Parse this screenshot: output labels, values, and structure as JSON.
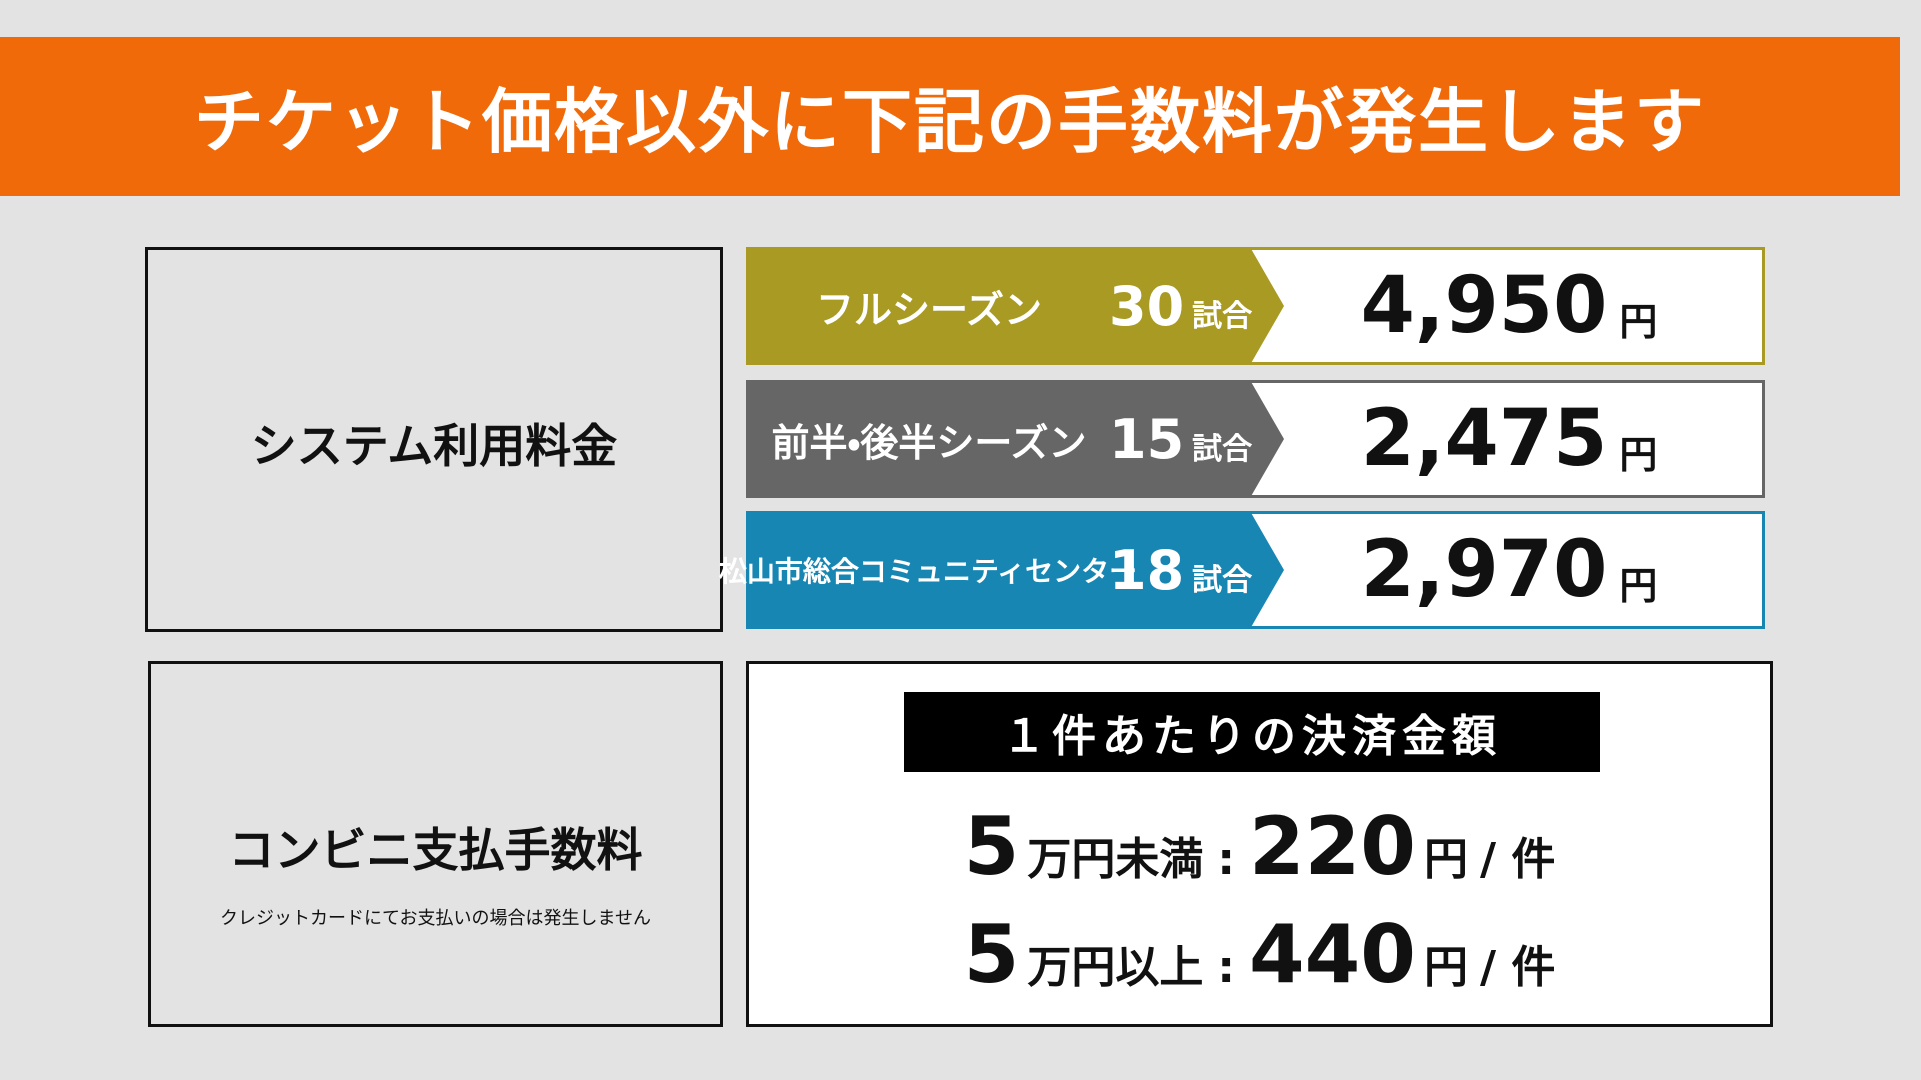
{
  "header": {
    "title": "チケット価格以外に下記の手数料が発生します"
  },
  "system_fee": {
    "label": "システム利用料金",
    "plans": [
      {
        "name": "フルシーズン",
        "games": "30",
        "games_unit": "試合",
        "price": "4,950",
        "price_unit": "円",
        "color": "#a89a22"
      },
      {
        "name": "前半・後半シーズン",
        "games": "15",
        "games_unit": "試合",
        "price": "2,475",
        "price_unit": "円",
        "color": "#666666"
      },
      {
        "name": "松山市総合コミュニティセンター",
        "games": "18",
        "games_unit": "試合",
        "price": "2,970",
        "price_unit": "円",
        "color": "#1786b3"
      }
    ]
  },
  "convenience_fee": {
    "label": "コンビニ支払手数料",
    "note": "クレジットカードにてお支払いの場合は発生しません",
    "heading": "１件あたりの決済金額",
    "tiers": [
      {
        "amount": "5",
        "condition": "万円未満",
        "separator": ":",
        "fee": "220",
        "fee_unit": "円",
        "per": "/ 件"
      },
      {
        "amount": "5",
        "condition": "万円以上",
        "separator": ":",
        "fee": "440",
        "fee_unit": "円",
        "per": "/ 件"
      }
    ]
  }
}
